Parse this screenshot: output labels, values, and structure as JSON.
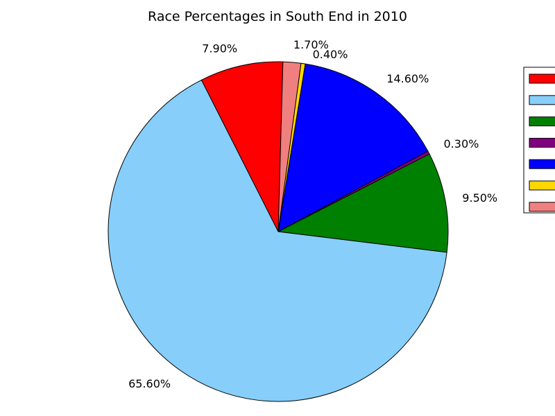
{
  "chart_data": {
    "type": "pie",
    "title": "Race Percentages in South End in 2010",
    "slices": [
      {
        "value": 7.9,
        "label": "7.90%",
        "color": "#ff0000"
      },
      {
        "value": 65.6,
        "label": "65.60%",
        "color": "#87cefa"
      },
      {
        "value": 9.5,
        "label": "9.50%",
        "color": "#008000"
      },
      {
        "value": 0.3,
        "label": "0.30%",
        "color": "#800080"
      },
      {
        "value": 14.6,
        "label": "14.60%",
        "color": "#0000ff"
      },
      {
        "value": 0.4,
        "label": "0.40%",
        "color": "#ffd700"
      },
      {
        "value": 1.7,
        "label": "1.70%",
        "color": "#f08080"
      }
    ],
    "start_angle_deg": 88.4,
    "direction": "counterclockwise",
    "legend": {
      "placement": "right",
      "entries": [
        {
          "color": "#ff0000"
        },
        {
          "color": "#87cefa"
        },
        {
          "color": "#008000"
        },
        {
          "color": "#800080"
        },
        {
          "color": "#0000ff"
        },
        {
          "color": "#ffd700"
        },
        {
          "color": "#f08080"
        }
      ]
    }
  }
}
